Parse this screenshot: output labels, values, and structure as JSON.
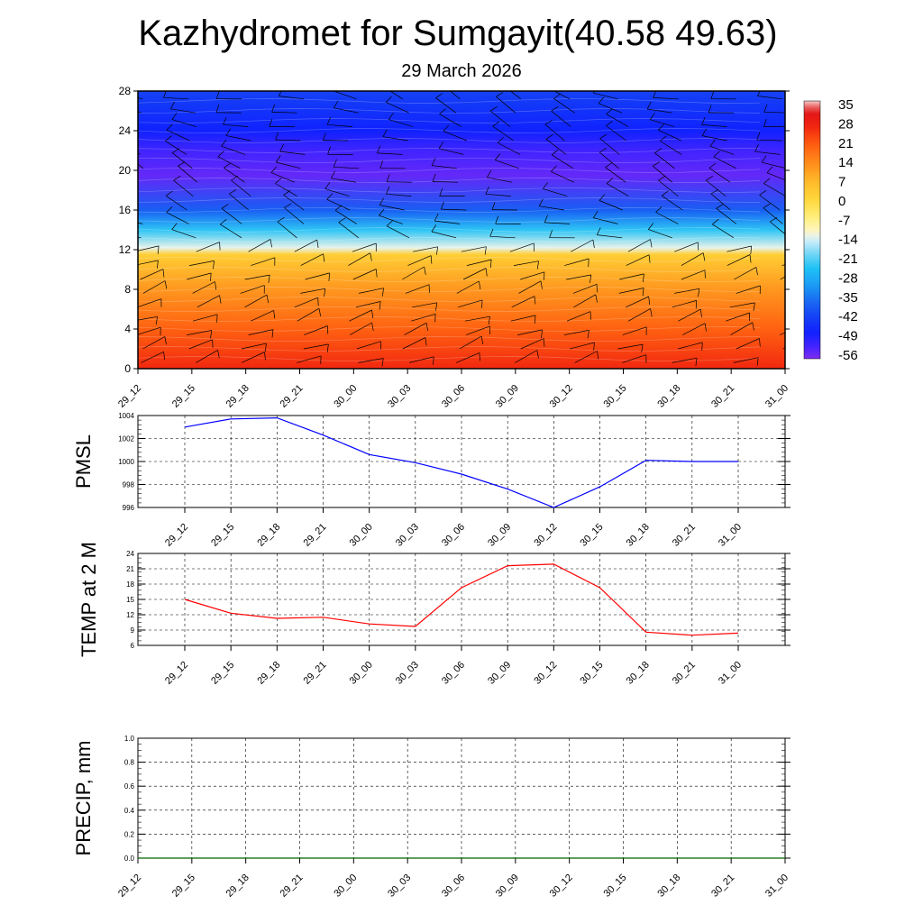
{
  "title": "Kazhydromet for Sumgayit(40.58 49.63)",
  "subtitle": "29 March 2026",
  "time_labels": [
    "29_12",
    "29_15",
    "29_18",
    "29_21",
    "30_00",
    "30_03",
    "30_06",
    "30_09",
    "30_12",
    "30_15",
    "30_18",
    "30_21",
    "31_00"
  ],
  "colors": {
    "pmsl_line": "#0000ff",
    "temp_line": "#ff0000",
    "precip_line": "#006400",
    "grid": "#000000"
  },
  "chart_data": [
    {
      "type": "heatmap",
      "name": "temperature-cross-section",
      "title": "",
      "ylabel": "",
      "yticks": [
        "0",
        "4",
        "8",
        "12",
        "16",
        "20",
        "24",
        "28"
      ],
      "ylim": [
        0,
        28
      ],
      "colorbar": {
        "labels": [
          "35",
          "28",
          "21",
          "14",
          "7",
          "0",
          "-7",
          "-14",
          "-21",
          "-28",
          "-35",
          "-42",
          "-49",
          "-56"
        ],
        "range": [
          -60,
          37
        ]
      },
      "vertical_profile": [
        {
          "level": 0,
          "value": 27
        },
        {
          "level": 4,
          "value": 20
        },
        {
          "level": 8,
          "value": 12
        },
        {
          "level": 11.5,
          "value": 2
        },
        {
          "level": 12.2,
          "value": -14
        },
        {
          "level": 14,
          "value": -25
        },
        {
          "level": 16,
          "value": -40
        },
        {
          "level": 19.5,
          "value": -58
        },
        {
          "level": 22,
          "value": -55
        },
        {
          "level": 24,
          "value": -50
        },
        {
          "level": 28,
          "value": -44
        }
      ],
      "wind_barbs": "black barbs on every time step and level"
    },
    {
      "type": "line",
      "name": "pmsl",
      "ylabel": "PMSL",
      "ylim": [
        996,
        1004
      ],
      "yticks": [
        "996",
        "998",
        "1000",
        "1002",
        "1004"
      ],
      "series": [
        {
          "name": "PMSL",
          "values": [
            1003.0,
            1003.7,
            1003.8,
            1002.3,
            1000.6,
            999.9,
            998.9,
            997.6,
            996.0,
            997.8,
            1000.1,
            1000.0,
            1000.0
          ]
        }
      ]
    },
    {
      "type": "line",
      "name": "temp2m",
      "ylabel": "TEMP at 2 M",
      "ylim": [
        6,
        24
      ],
      "yticks": [
        "6",
        "9",
        "12",
        "15",
        "18",
        "21",
        "24"
      ],
      "series": [
        {
          "name": "TEMP at 2 M",
          "values": [
            15.0,
            12.3,
            11.3,
            11.5,
            10.2,
            9.7,
            17.3,
            21.6,
            21.9,
            17.3,
            8.6,
            8.0,
            8.4
          ]
        }
      ]
    },
    {
      "type": "line",
      "name": "precip",
      "ylabel": "PRECIP, mm",
      "ylim": [
        0,
        1
      ],
      "yticks": [
        "0.0",
        "0.2",
        "0.4",
        "0.6",
        "0.8",
        "1.0"
      ],
      "series": [
        {
          "name": "PRECIP",
          "values": [
            0,
            0,
            0,
            0,
            0,
            0,
            0,
            0,
            0,
            0,
            0,
            0,
            0
          ]
        }
      ]
    }
  ]
}
